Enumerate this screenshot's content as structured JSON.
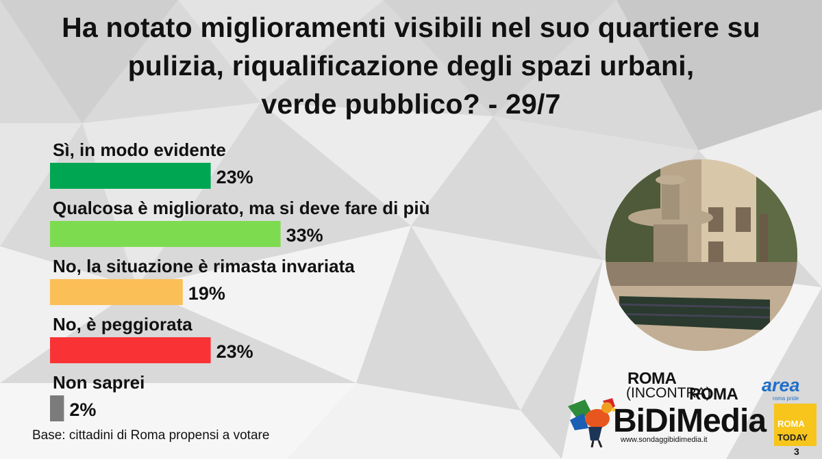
{
  "title_lines": [
    "Ha notato miglioramenti visibili nel suo quartiere su",
    "pulizia, riqualificazione degli spazi urbani,",
    "verde pubblico? - 29/7"
  ],
  "chart_data": {
    "type": "bar",
    "orientation": "horizontal",
    "categories": [
      "Sì, in modo evidente",
      "Qualcosa è migliorato, ma si deve fare di più",
      "No, la situazione è rimasta invariata",
      "No, è peggiorata",
      "Non saprei"
    ],
    "values": [
      23,
      33,
      19,
      23,
      2
    ],
    "value_labels": [
      "23%",
      "33%",
      "19%",
      "23%",
      "2%"
    ],
    "colors": [
      "#00a652",
      "#7ddb50",
      "#fbbf58",
      "#f93335",
      "#7b7b7b"
    ],
    "xlim": [
      0,
      100
    ],
    "grid": false,
    "legend": "none"
  },
  "base_note": "Base: cittadini di Roma propensi a votare",
  "logos": {
    "roma_incontra_top": "ROMA",
    "roma_incontra_mid": "(INCONTRA)",
    "roma_incontra_right": "ROMA",
    "area": "area",
    "area_sub": "roma pride",
    "bidimedia": "BiDiMedia",
    "website": "www.sondaggibidimedia.it",
    "romatoday_a": "ROMA",
    "romatoday_b": "TODAY"
  },
  "page_number": "3",
  "photo_icon": "park-fountain-photo",
  "rooster_icon": "rooster-logo-icon"
}
